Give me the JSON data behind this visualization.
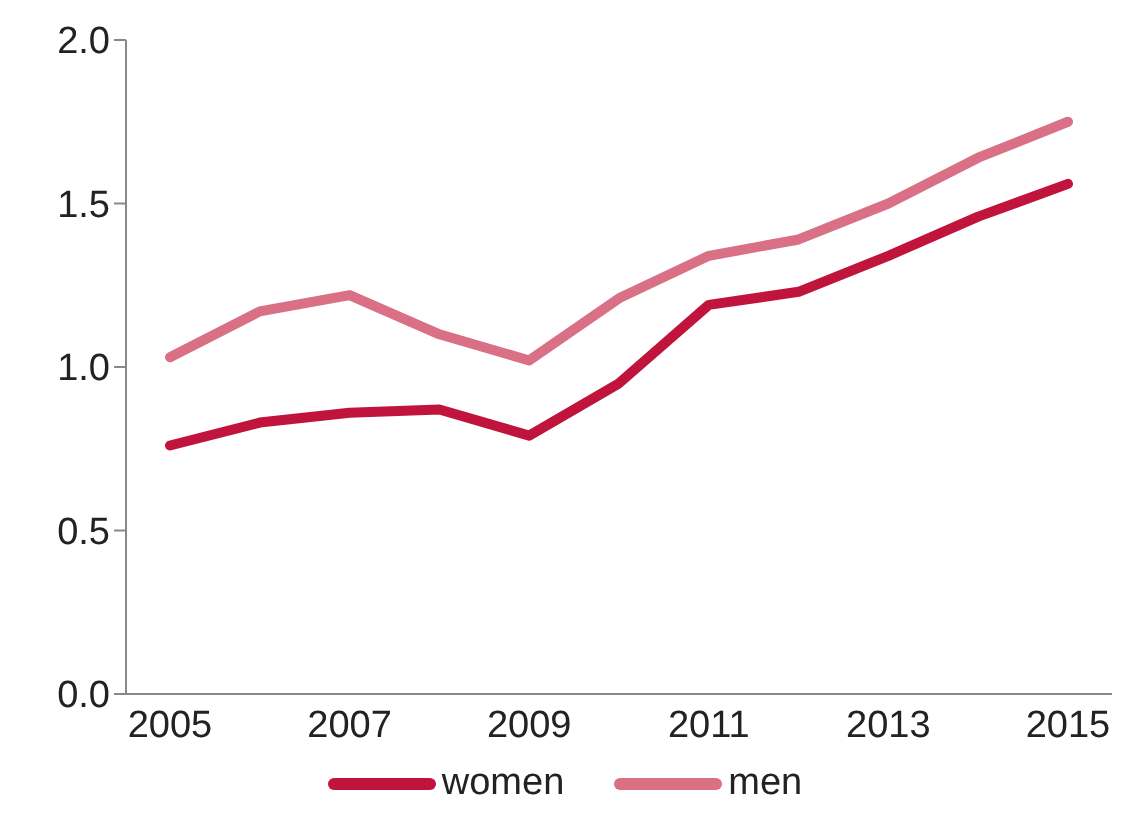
{
  "chart_data": {
    "type": "line",
    "categories": [
      "2005",
      null,
      "2007",
      null,
      "2009",
      null,
      "2011",
      null,
      "2013",
      null,
      "2015"
    ],
    "series": [
      {
        "name": "women",
        "color": "#c0143c",
        "values": [
          0.76,
          0.83,
          0.86,
          0.87,
          0.79,
          0.95,
          1.19,
          1.23,
          1.34,
          1.46,
          1.56
        ]
      },
      {
        "name": "men",
        "color": "#d97085",
        "values": [
          1.03,
          1.17,
          1.22,
          1.1,
          1.02,
          1.21,
          1.34,
          1.39,
          1.5,
          1.64,
          1.75
        ]
      }
    ],
    "ylim": [
      0,
      2
    ],
    "yticks": [
      {
        "value": 0,
        "label": "0.0"
      },
      0.5,
      {
        "value": 1,
        "label": "1.0"
      },
      1.5,
      {
        "value": 2,
        "label": "2.0"
      }
    ],
    "grid": false,
    "legend": "bottom",
    "marker": "none",
    "line_style": "solid"
  }
}
